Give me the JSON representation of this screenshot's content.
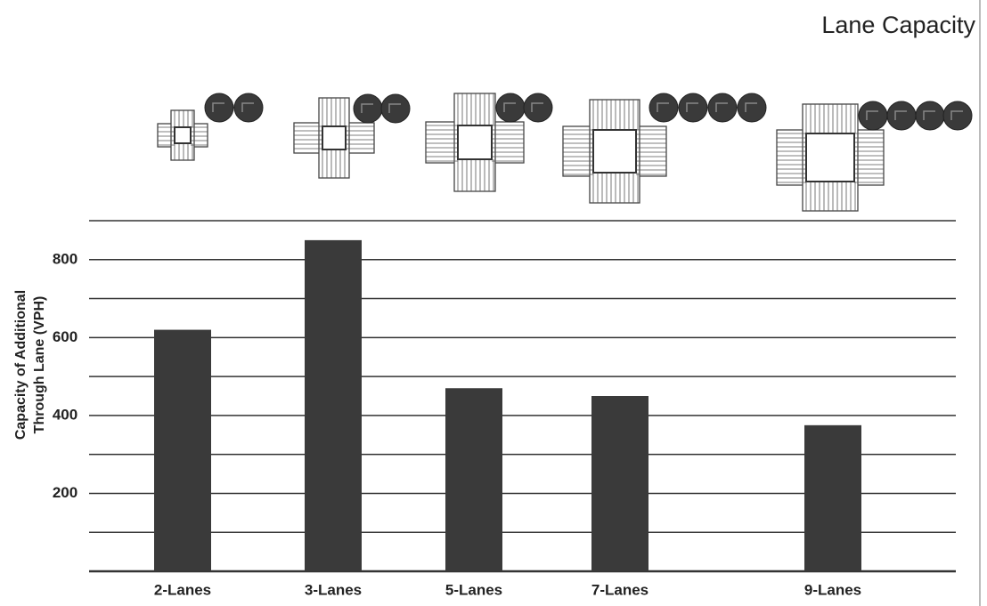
{
  "chart_data": {
    "type": "bar",
    "title": "Lane Capacity",
    "ylabel": [
      "Capacity of Additional",
      "Through Lane (VPH)"
    ],
    "categories": [
      "2-Lanes",
      "3-Lanes",
      "5-Lanes",
      "7-Lanes",
      "9-Lanes"
    ],
    "values": [
      620,
      850,
      470,
      450,
      375
    ],
    "color": "#3a3a3a",
    "ylim": [
      0,
      900
    ],
    "yticks": [
      200,
      400,
      600,
      800
    ],
    "minor_yticks": [
      0,
      100,
      300,
      500,
      700,
      900
    ],
    "grid": true
  }
}
